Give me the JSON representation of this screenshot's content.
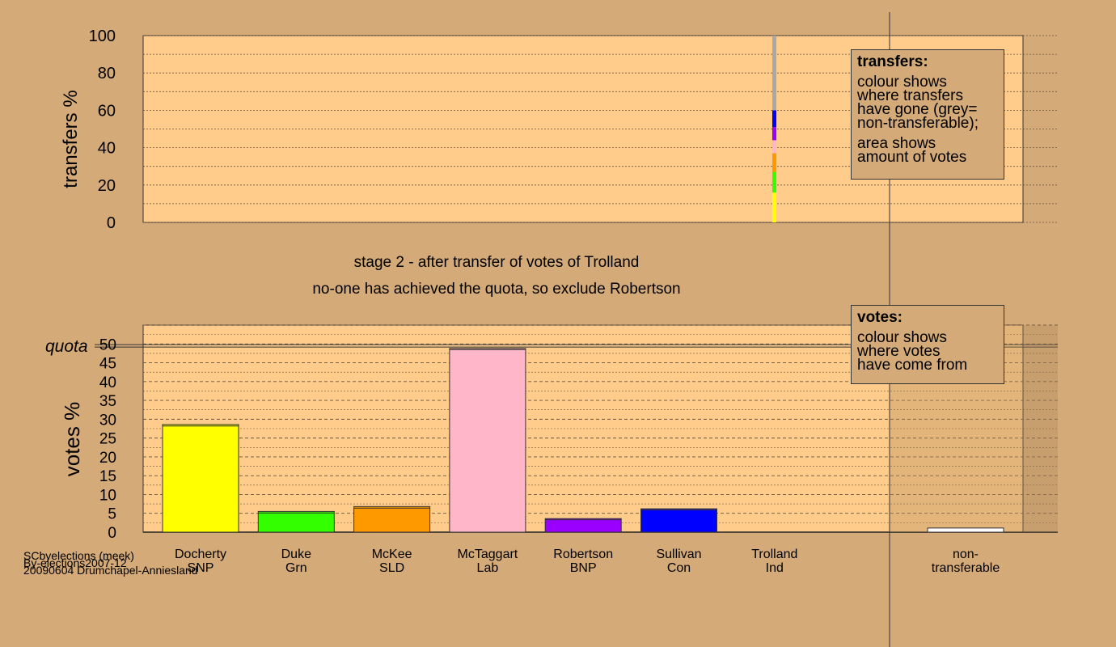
{
  "chart_data": [
    {
      "type": "bar",
      "name": "transfers",
      "ylabel": "transfers %",
      "ylim": [
        0,
        100
      ],
      "yticks": [
        0,
        20,
        40,
        60,
        80,
        100
      ],
      "transfer_stack": [
        {
          "to": "Docherty",
          "color": "#ffff00",
          "from": 0,
          "to_pct": 16
        },
        {
          "to": "Duke",
          "color": "#33ff00",
          "from": 16,
          "to_pct": 27
        },
        {
          "to": "McKee",
          "color": "#ff9900",
          "from": 27,
          "to_pct": 37
        },
        {
          "to": "McTaggart",
          "color": "#ffb6c8",
          "from": 37,
          "to_pct": 44
        },
        {
          "to": "Robertson",
          "color": "#9900ff",
          "from": 44,
          "to_pct": 51
        },
        {
          "to": "Sullivan",
          "color": "#0000ff",
          "from": 51,
          "to_pct": 60
        },
        {
          "to": "non-transferable",
          "color": "#a8a8a8",
          "from": 60,
          "to_pct": 100
        }
      ]
    },
    {
      "type": "bar",
      "name": "votes",
      "ylabel": "votes %",
      "ylim": [
        0,
        55
      ],
      "yticks": [
        0,
        5,
        10,
        15,
        20,
        25,
        30,
        35,
        40,
        45,
        50
      ],
      "quota": 49.5,
      "quota_label": "quota",
      "categories": [
        {
          "name": "Docherty",
          "party": "SNP",
          "value": 28.6,
          "prev": 28.2,
          "color": "#ffff00"
        },
        {
          "name": "Duke",
          "party": "Grn",
          "value": 5.5,
          "prev": 5.1,
          "color": "#33ff00"
        },
        {
          "name": "McKee",
          "party": "SLD",
          "value": 6.8,
          "prev": 6.4,
          "color": "#ff9900"
        },
        {
          "name": "McTaggart",
          "party": "Lab",
          "value": 48.8,
          "prev": 48.5,
          "color": "#ffb6c8"
        },
        {
          "name": "Robertson",
          "party": "BNP",
          "value": 3.6,
          "prev": 3.3,
          "color": "#9900ff"
        },
        {
          "name": "Sullivan",
          "party": "Con",
          "value": 6.2,
          "prev": 5.9,
          "color": "#0000ff"
        },
        {
          "name": "Trolland",
          "party": "Ind",
          "value": 0,
          "prev": 0,
          "color": "#d4aa78"
        }
      ],
      "nontransferable": {
        "name": "non-",
        "party": "transferable",
        "value": 1.1,
        "color": "#ffffff"
      }
    }
  ],
  "legend_transfers": {
    "title": "transfers:",
    "line1": "colour shows",
    "line2": "where transfers",
    "line3": "have gone (grey=",
    "line4": "non-transferable);",
    "line5": "area shows",
    "line6": "amount of votes"
  },
  "legend_votes": {
    "title": "votes:",
    "line1": "colour shows",
    "line2": "where votes",
    "line3": "have come from"
  },
  "stage": {
    "line1": "stage 2 - after transfer of votes of Trolland",
    "line2": "no-one has achieved the quota, so exclude Robertson"
  },
  "footer": {
    "line1": "SCbyelections (meek)",
    "line2": "By-elections2007-12",
    "line3": "20090604 Drumchapel-Anniesland"
  },
  "colors": {
    "background": "#d4aa78",
    "panel": "#ffcc8c",
    "border": "#333333"
  }
}
